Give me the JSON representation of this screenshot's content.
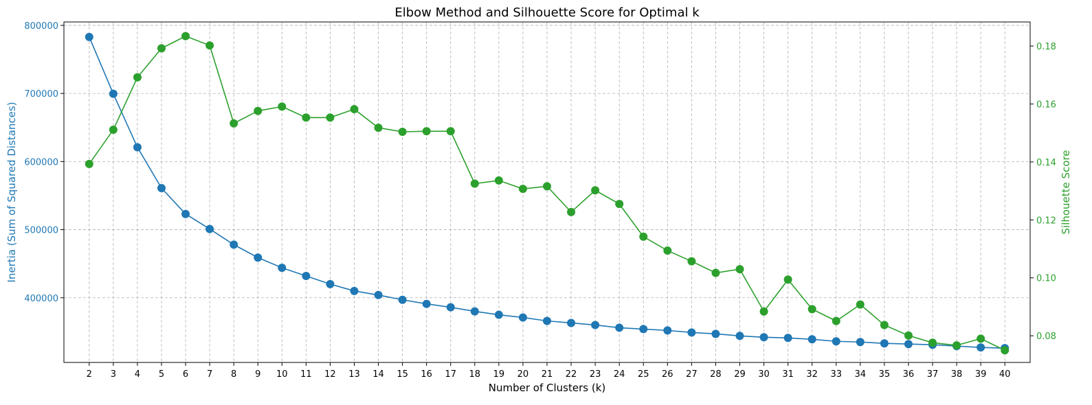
{
  "chart_data": {
    "type": "line",
    "title": "Elbow Method and Silhouette Score for Optimal k",
    "xlabel": "Number of Clusters (k)",
    "ylabel_left": "Inertia (Sum of Squared Distances)",
    "ylabel_right": "Silhouette Score",
    "x": [
      2,
      3,
      4,
      5,
      6,
      7,
      8,
      9,
      10,
      11,
      12,
      13,
      14,
      15,
      16,
      17,
      18,
      19,
      20,
      21,
      22,
      23,
      24,
      25,
      26,
      27,
      28,
      29,
      30,
      31,
      32,
      33,
      34,
      35,
      36,
      37,
      38,
      39,
      40
    ],
    "x_tick_labels": [
      "2",
      "3",
      "4",
      "5",
      "6",
      "7",
      "8",
      "9",
      "10",
      "11",
      "12",
      "13",
      "14",
      "15",
      "16",
      "17",
      "18",
      "19",
      "20",
      "21",
      "22",
      "23",
      "24",
      "25",
      "26",
      "27",
      "28",
      "29",
      "30",
      "31",
      "32",
      "33",
      "34",
      "35",
      "36",
      "37",
      "38",
      "39",
      "40"
    ],
    "ylim_left": [
      305000,
      805000
    ],
    "yticks_left": [
      "400000",
      "500000",
      "600000",
      "700000",
      "800000"
    ],
    "ylim_right": [
      0.0708,
      0.1883
    ],
    "yticks_right": [
      "0.08",
      "0.10",
      "0.12",
      "0.14",
      "0.16",
      "0.18"
    ],
    "grid": true,
    "colors": {
      "inertia": "#1f77b4",
      "silhouette": "#2ca02c",
      "grid": "#b0b0b0",
      "axis": "#000000"
    },
    "series": [
      {
        "key": "inertia",
        "axis": "left",
        "values": [
          783000,
          699500,
          621000,
          561000,
          523000,
          501000,
          478000,
          459000,
          444000,
          432000,
          420000,
          410000,
          404000,
          397000,
          391000,
          386000,
          380000,
          375000,
          371000,
          366000,
          363000,
          360000,
          356000,
          354000,
          352000,
          349000,
          347000,
          344000,
          342000,
          341000,
          339000,
          336000,
          335000,
          333000,
          332000,
          331000,
          329000,
          327000,
          326000
        ]
      },
      {
        "key": "silhouette",
        "axis": "right",
        "values": [
          0.1393,
          0.1511,
          0.1692,
          0.1792,
          0.1834,
          0.1802,
          0.1533,
          0.1576,
          0.1591,
          0.1553,
          0.1553,
          0.1582,
          0.1518,
          0.1504,
          0.1506,
          0.1506,
          0.1325,
          0.1336,
          0.1307,
          0.1316,
          0.1227,
          0.1302,
          0.1255,
          0.1142,
          0.1094,
          0.1057,
          0.1017,
          0.103,
          0.0884,
          0.0994,
          0.0892,
          0.0851,
          0.0908,
          0.0837,
          0.0801,
          0.0776,
          0.0767,
          0.079,
          0.075
        ]
      }
    ]
  }
}
